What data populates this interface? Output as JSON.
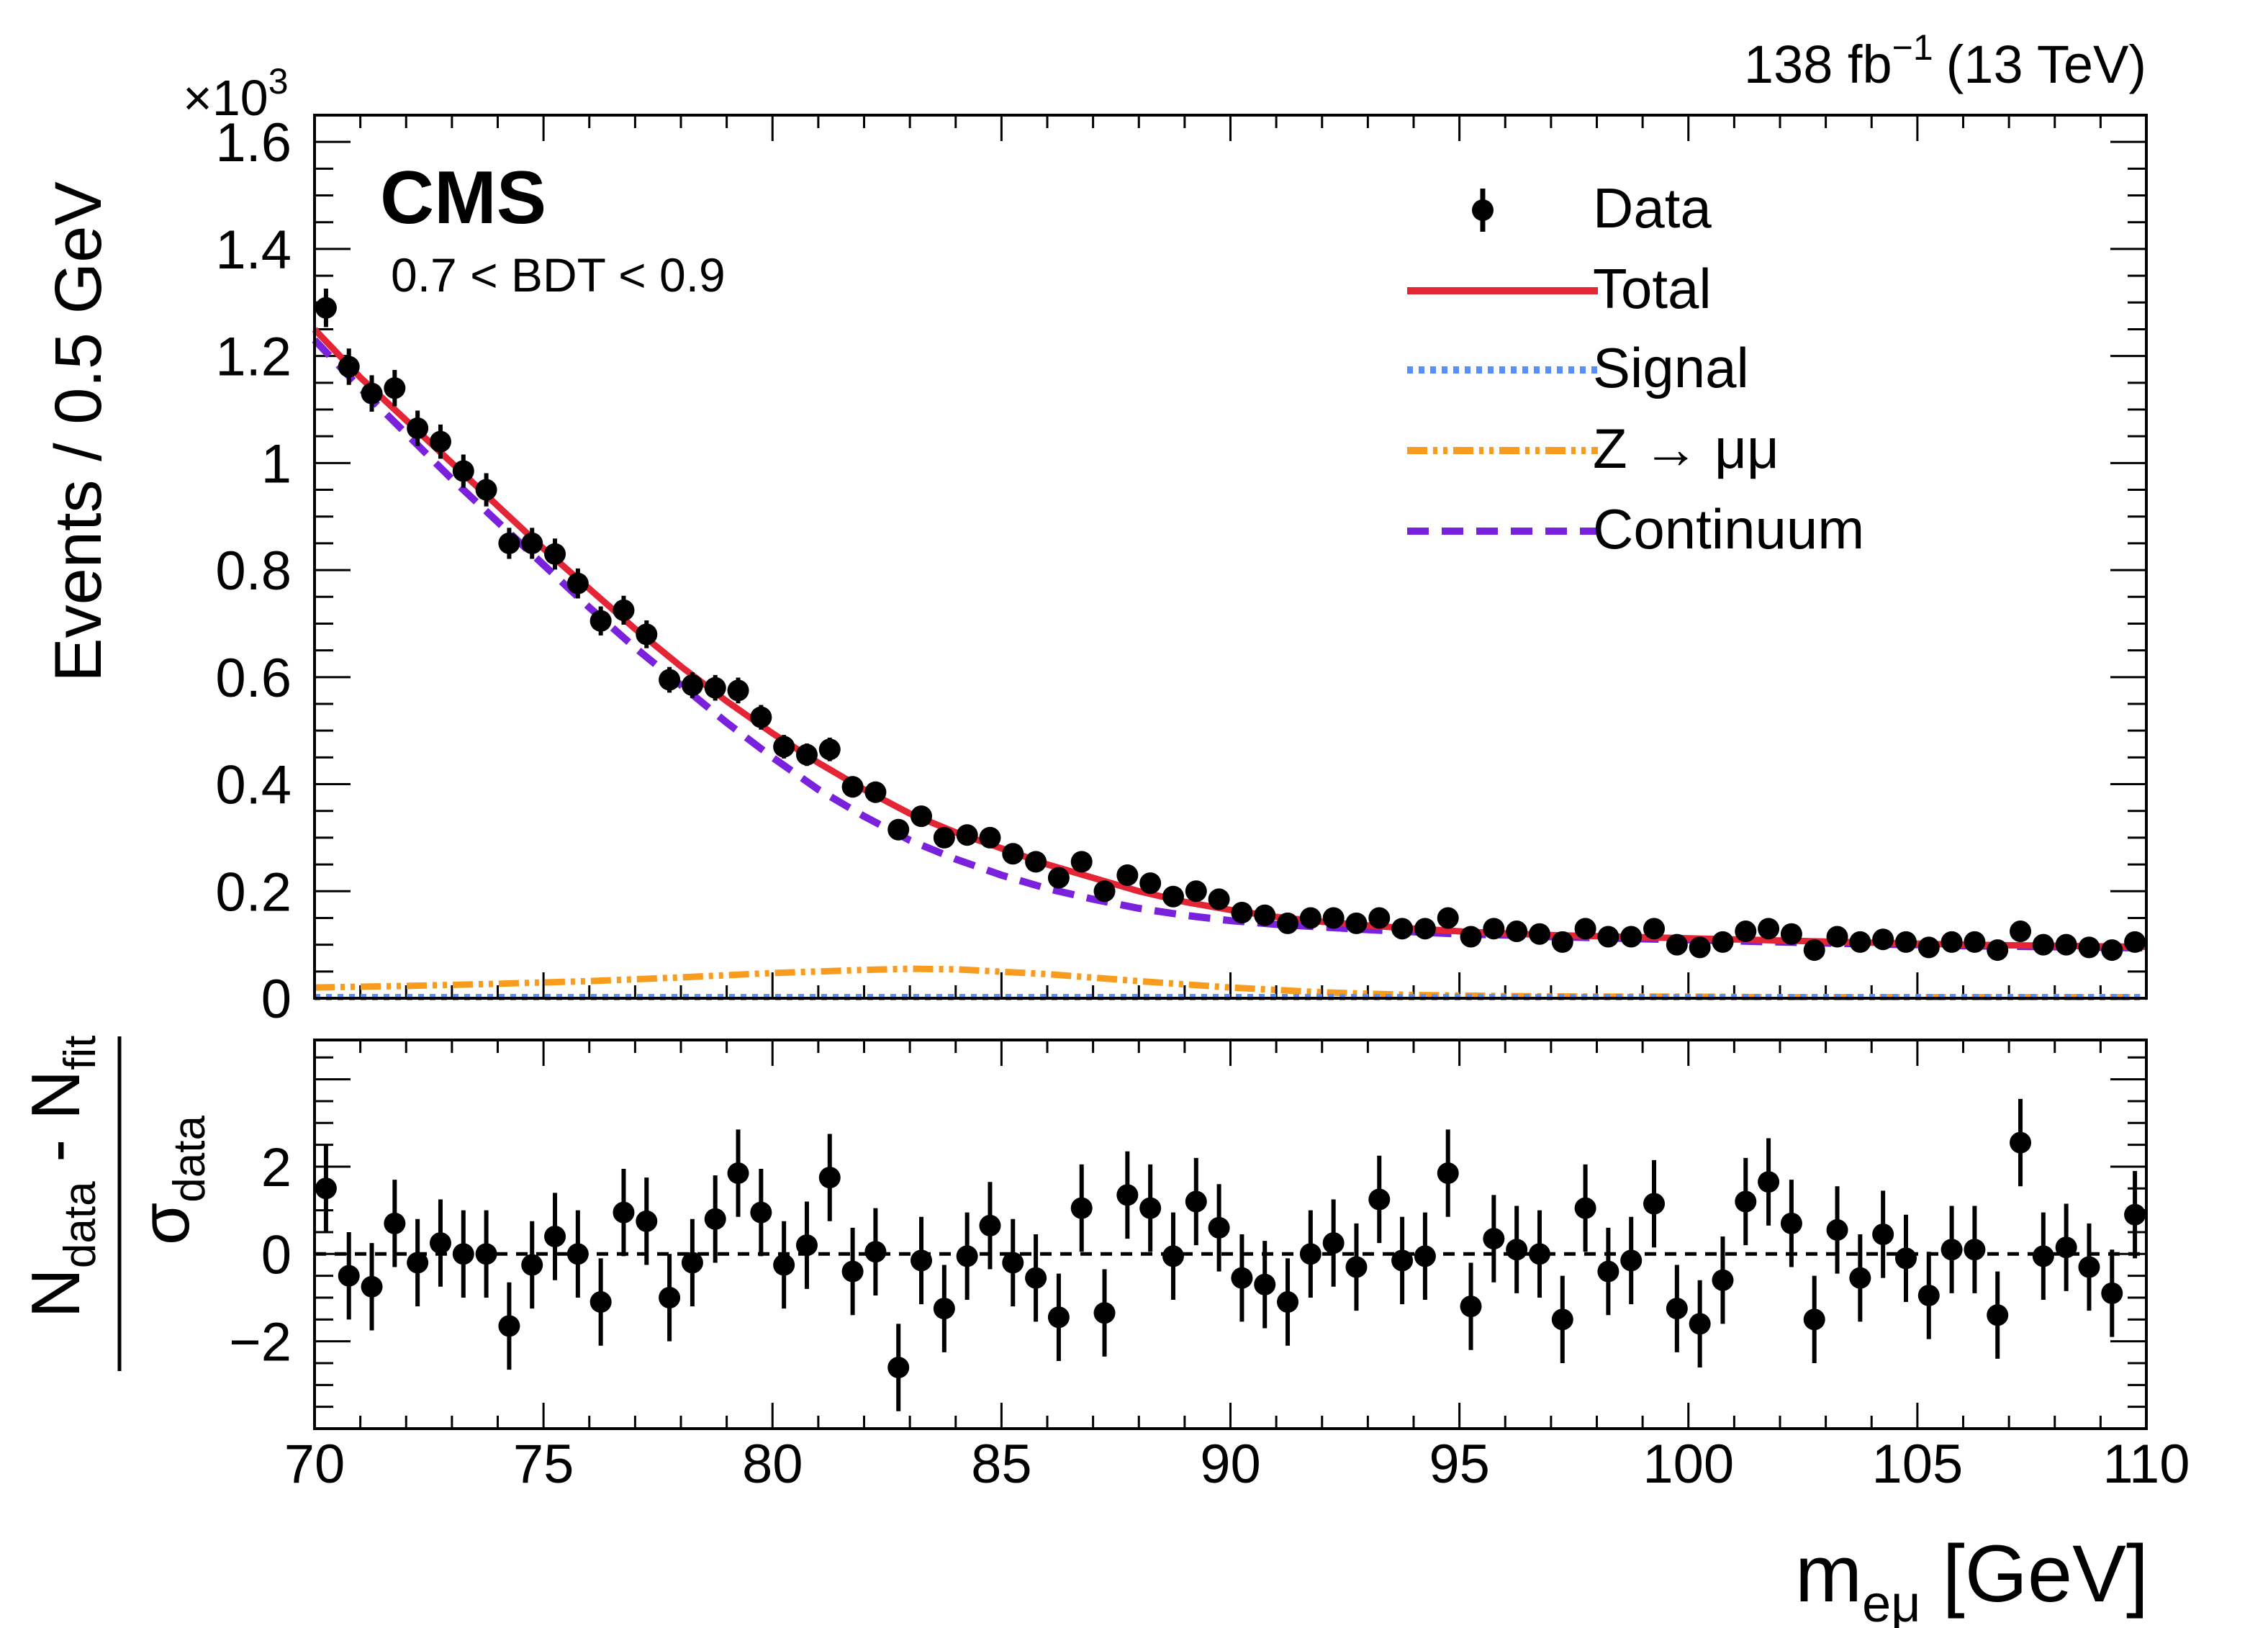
{
  "chart_data": {
    "type": "scatter",
    "lumi_label": "138 fb",
    "lumi_sup": "−1",
    "lumi_energy": "(13 TeV)",
    "experiment": "CMS",
    "category": "0.7 < BDT < 0.9",
    "multiplier": "×10",
    "multiplier_exp": "3",
    "ylabel": "Events / 0.5 GeV",
    "xlabel_main": "m",
    "xlabel_sub": "eμ",
    "xlabel_unit": "[GeV]",
    "ratio_ylabel_num": "N",
    "ratio_ylabel_num_sub1": "data",
    "ratio_ylabel_minus": " - N",
    "ratio_ylabel_num_sub2": "fit",
    "ratio_ylabel_den": "σ",
    "ratio_ylabel_den_sub": "data",
    "xlim": [
      70,
      110
    ],
    "ylim": [
      0,
      1.65
    ],
    "ratio_ylim": [
      -4,
      4.9
    ],
    "x_ticks": [
      "70",
      "75",
      "80",
      "85",
      "90",
      "95",
      "100",
      "105",
      "110"
    ],
    "y_ticks": [
      "0",
      "0.2",
      "0.4",
      "0.6",
      "0.8",
      "1",
      "1.2",
      "1.4",
      "1.6"
    ],
    "ratio_y_ticks": [
      "−2",
      "0",
      "2"
    ],
    "legend": {
      "data": "Data",
      "total": "Total",
      "signal": "Signal",
      "zmumu": "Z → μμ",
      "continuum": "Continuum"
    },
    "colors": {
      "data": "#000000",
      "total": "#e42536",
      "signal": "#5790fc",
      "zmumu": "#f89c20",
      "continuum": "#7a21dd"
    },
    "data_x": [
      70.25,
      70.75,
      71.25,
      71.75,
      72.25,
      72.75,
      73.25,
      73.75,
      74.25,
      74.75,
      75.25,
      75.75,
      76.25,
      76.75,
      77.25,
      77.75,
      78.25,
      78.75,
      79.25,
      79.75,
      80.25,
      80.75,
      81.25,
      81.75,
      82.25,
      82.75,
      83.25,
      83.75,
      84.25,
      84.75,
      85.25,
      85.75,
      86.25,
      86.75,
      87.25,
      87.75,
      88.25,
      88.75,
      89.25,
      89.75,
      90.25,
      90.75,
      91.25,
      91.75,
      92.25,
      92.75,
      93.25,
      93.75,
      94.25,
      94.75,
      95.25,
      95.75,
      96.25,
      96.75,
      97.25,
      97.75,
      98.25,
      98.75,
      99.25,
      99.75,
      100.25,
      100.75,
      101.25,
      101.75,
      102.25,
      102.75,
      103.25,
      103.75,
      104.25,
      104.75,
      105.25,
      105.75,
      106.25,
      106.75,
      107.25,
      107.75,
      108.25,
      108.75,
      109.25,
      109.75
    ],
    "data_y": [
      1.29,
      1.18,
      1.13,
      1.14,
      1.065,
      1.04,
      0.985,
      0.95,
      0.85,
      0.85,
      0.83,
      0.775,
      0.705,
      0.725,
      0.68,
      0.595,
      0.585,
      0.58,
      0.575,
      0.525,
      0.47,
      0.455,
      0.465,
      0.395,
      0.385,
      0.315,
      0.34,
      0.3,
      0.305,
      0.3,
      0.27,
      0.255,
      0.225,
      0.255,
      0.2,
      0.23,
      0.215,
      0.19,
      0.2,
      0.185,
      0.16,
      0.155,
      0.14,
      0.15,
      0.15,
      0.14,
      0.15,
      0.13,
      0.13,
      0.15,
      0.115,
      0.13,
      0.125,
      0.12,
      0.105,
      0.13,
      0.115,
      0.115,
      0.13,
      0.1,
      0.095,
      0.105,
      0.125,
      0.13,
      0.12,
      0.09,
      0.115,
      0.105,
      0.11,
      0.105,
      0.095,
      0.105,
      0.105,
      0.09,
      0.125,
      0.1,
      0.1,
      0.095,
      0.09,
      0.105
    ],
    "data_err": [
      0.036,
      0.034,
      0.034,
      0.034,
      0.033,
      0.032,
      0.031,
      0.031,
      0.029,
      0.029,
      0.029,
      0.028,
      0.027,
      0.027,
      0.026,
      0.024,
      0.024,
      0.024,
      0.024,
      0.023,
      0.022,
      0.021,
      0.022,
      0.02,
      0.02,
      0.018,
      0.018,
      0.017,
      0.017,
      0.017,
      0.016,
      0.016,
      0.015,
      0.016,
      0.014,
      0.015,
      0.015,
      0.014,
      0.014,
      0.014,
      0.013,
      0.012,
      0.012,
      0.012,
      0.012,
      0.012,
      0.012,
      0.011,
      0.011,
      0.012,
      0.011,
      0.011,
      0.011,
      0.011,
      0.01,
      0.011,
      0.011,
      0.011,
      0.011,
      0.01,
      0.01,
      0.01,
      0.011,
      0.011,
      0.011,
      0.009,
      0.011,
      0.01,
      0.01,
      0.01,
      0.01,
      0.01,
      0.01,
      0.009,
      0.011,
      0.01,
      0.01,
      0.01,
      0.009,
      0.01
    ],
    "pull": [
      1.5,
      -0.5,
      -0.75,
      0.7,
      -0.2,
      0.25,
      0.0,
      0.0,
      -1.65,
      -0.25,
      0.4,
      0.0,
      -1.1,
      0.95,
      0.75,
      -1.0,
      -0.2,
      0.8,
      1.85,
      0.95,
      -0.25,
      0.2,
      1.75,
      -0.4,
      0.05,
      -2.6,
      -0.15,
      -1.25,
      -0.05,
      0.65,
      -0.2,
      -0.55,
      -1.45,
      1.05,
      -1.35,
      1.35,
      1.05,
      -0.05,
      1.2,
      0.6,
      -0.55,
      -0.7,
      -1.1,
      0.0,
      0.25,
      -0.3,
      1.25,
      -0.15,
      -0.05,
      1.85,
      -1.2,
      0.35,
      0.1,
      0.0,
      -1.5,
      1.05,
      -0.4,
      -0.15,
      1.15,
      -1.25,
      -1.6,
      -0.6,
      1.2,
      1.65,
      0.7,
      -1.5,
      0.55,
      -0.55,
      0.45,
      -0.1,
      -0.95,
      0.1,
      0.1,
      -1.4,
      2.55,
      -0.05,
      0.15,
      -0.3,
      -0.9,
      0.9
    ],
    "total_curve": {
      "x": [
        70,
        71,
        72,
        73,
        74,
        75,
        76,
        77,
        78,
        79,
        80,
        81,
        82,
        83,
        84,
        85,
        86,
        87,
        88,
        89,
        90,
        91,
        92,
        93,
        94,
        95,
        96,
        97,
        98,
        99,
        100,
        101,
        102,
        103,
        104,
        105,
        106,
        107,
        108,
        109,
        110
      ],
      "y": [
        1.25,
        1.16,
        1.08,
        1.0,
        0.92,
        0.84,
        0.765,
        0.69,
        0.62,
        0.555,
        0.495,
        0.44,
        0.39,
        0.345,
        0.31,
        0.28,
        0.25,
        0.225,
        0.2,
        0.18,
        0.165,
        0.152,
        0.143,
        0.136,
        0.13,
        0.125,
        0.121,
        0.118,
        0.116,
        0.114,
        0.112,
        0.11,
        0.108,
        0.106,
        0.104,
        0.102,
        0.1,
        0.099,
        0.098,
        0.097,
        0.096
      ]
    },
    "continuum_curve": {
      "x": [
        70,
        71,
        72,
        73,
        74,
        75,
        76,
        77,
        78,
        79,
        80,
        81,
        82,
        83,
        84,
        85,
        86,
        87,
        88,
        89,
        90,
        91,
        92,
        93,
        94,
        95,
        96,
        97,
        98,
        99,
        100,
        101,
        102,
        103,
        104,
        105,
        106,
        107,
        108,
        109,
        110
      ],
      "y": [
        1.23,
        1.14,
        1.055,
        0.97,
        0.89,
        0.81,
        0.73,
        0.655,
        0.585,
        0.515,
        0.45,
        0.39,
        0.34,
        0.295,
        0.26,
        0.23,
        0.205,
        0.185,
        0.168,
        0.155,
        0.145,
        0.138,
        0.133,
        0.128,
        0.124,
        0.12,
        0.118,
        0.115,
        0.113,
        0.111,
        0.109,
        0.107,
        0.105,
        0.103,
        0.101,
        0.1,
        0.098,
        0.097,
        0.096,
        0.095,
        0.094
      ]
    },
    "zmumu_curve": {
      "x": [
        70,
        72,
        74,
        76,
        78,
        80,
        82,
        83,
        84,
        86,
        88,
        90,
        92,
        94,
        96,
        98,
        100,
        102,
        104,
        106,
        108,
        110
      ],
      "y": [
        0.02,
        0.023,
        0.027,
        0.032,
        0.039,
        0.047,
        0.053,
        0.055,
        0.054,
        0.045,
        0.032,
        0.02,
        0.011,
        0.006,
        0.004,
        0.003,
        0.003,
        0.002,
        0.002,
        0.002,
        0.002,
        0.002
      ]
    },
    "signal_curve": {
      "x": [
        70,
        110
      ],
      "y": [
        0.002,
        0.002
      ]
    }
  }
}
